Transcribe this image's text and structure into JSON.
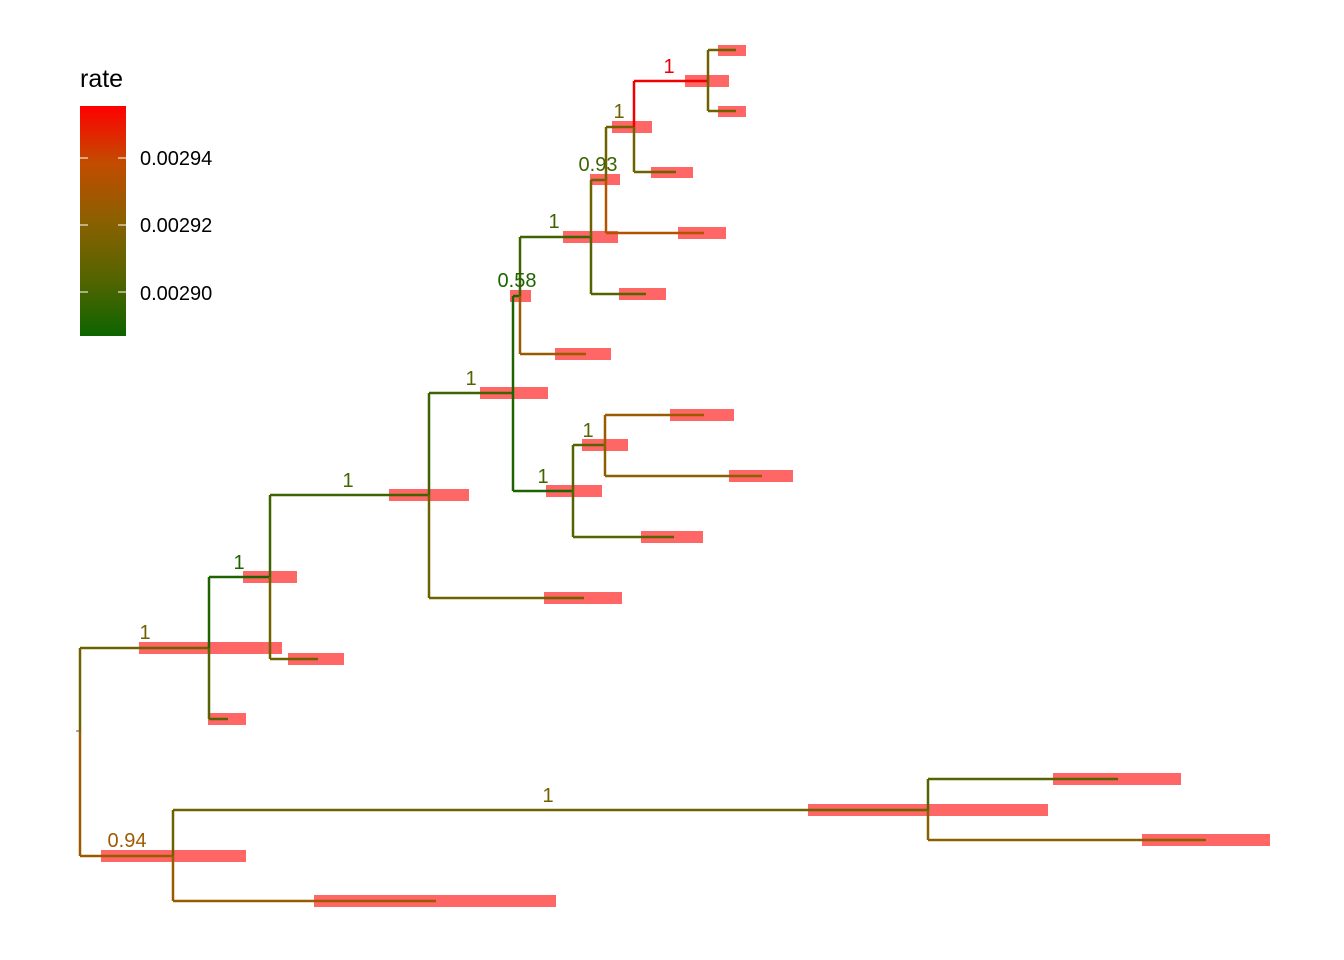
{
  "legend": {
    "title": "rate",
    "ticks": [
      {
        "label": "0.00294",
        "value": 0.00294
      },
      {
        "label": "0.00292",
        "value": 0.00292
      },
      {
        "label": "0.00290",
        "value": 0.0029
      }
    ],
    "gradient": [
      "#ff0000",
      "#c24c00",
      "#8a6000",
      "#556400",
      "#0d6400"
    ]
  },
  "support_values": [
    {
      "label": "1",
      "color": "#e8000a"
    },
    {
      "label": "1",
      "color": "#6e6200"
    },
    {
      "label": "0.93",
      "color": "#3f6400"
    },
    {
      "label": "1",
      "color": "#3d6400"
    },
    {
      "label": "0.58",
      "color": "#1d6400"
    },
    {
      "label": "1",
      "color": "#556400"
    },
    {
      "label": "1",
      "color": "#556400"
    },
    {
      "label": "1",
      "color": "#3d6400"
    },
    {
      "label": "1",
      "color": "#456400"
    },
    {
      "label": "1",
      "color": "#1d6400"
    },
    {
      "label": "1",
      "color": "#6e6200"
    },
    {
      "label": "1",
      "color": "#6e6200"
    },
    {
      "label": "0.94",
      "color": "#a05a00"
    }
  ],
  "branch_colors": {
    "red": "#f00000",
    "dark_orange": "#b05400",
    "orange": "#9a5a00",
    "olive": "#6e6200",
    "olive_green": "#556400",
    "green": "#3d6400",
    "dark_green": "#1d6400"
  },
  "interval_bar_color": "#ff6666",
  "interval_median_color": "#cc2222"
}
